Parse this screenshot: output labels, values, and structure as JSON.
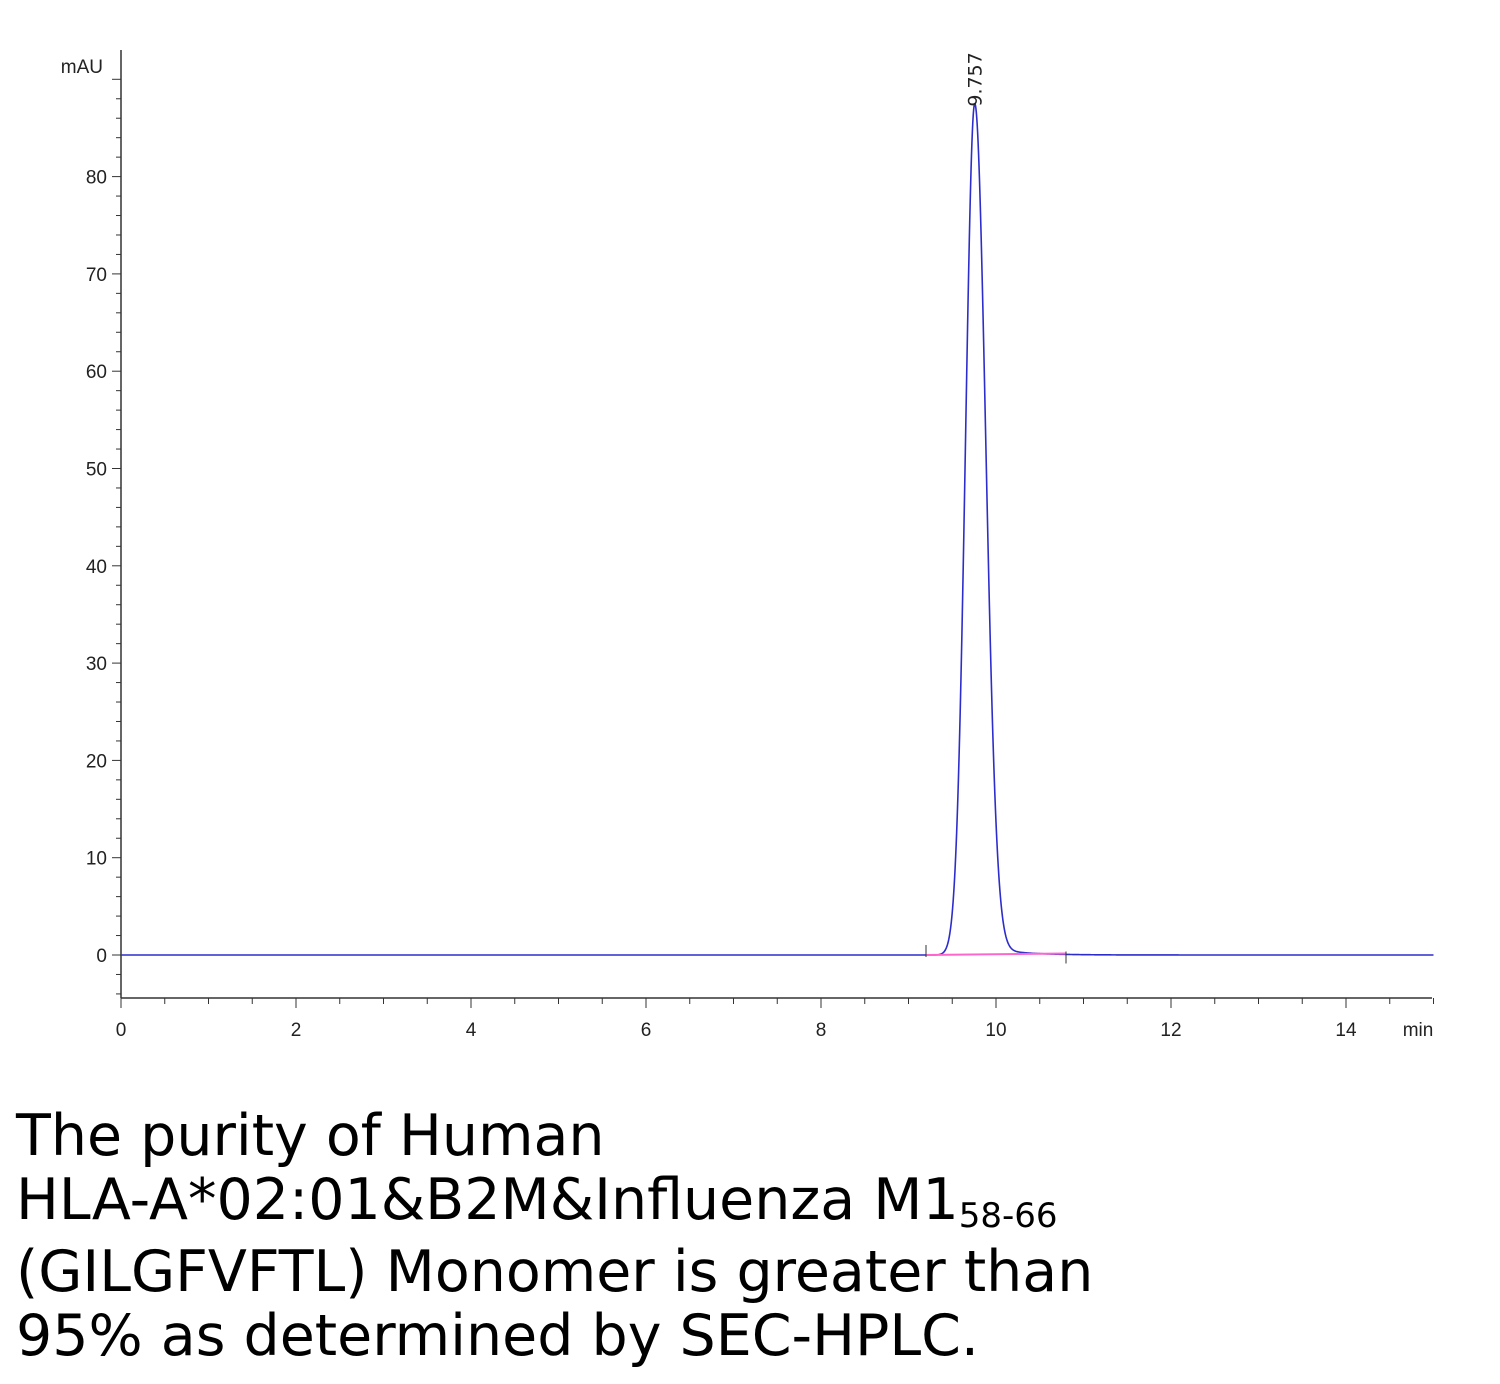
{
  "chart_data": {
    "type": "line",
    "xlabel": "min",
    "ylabel": "mAU",
    "xlim": [
      0,
      15
    ],
    "ylim": [
      -4.5,
      92
    ],
    "x_ticks": [
      0,
      2,
      4,
      6,
      8,
      10,
      12,
      14
    ],
    "y_ticks": [
      0,
      10,
      20,
      30,
      40,
      50,
      60,
      70,
      80
    ],
    "grid": false,
    "series": [
      {
        "color": "#2d2dcc",
        "peak": {
          "retention_time": 9.757,
          "height": 87.5,
          "sigma_left": 0.105,
          "sigma_right": 0.125
        },
        "baseline": 0
      }
    ],
    "integration_baseline": {
      "x": [
        9.2,
        10.8
      ],
      "y": [
        0,
        0.15
      ],
      "color": "#ff66cc"
    },
    "annotations": [
      {
        "text": "9.757",
        "x": 9.757,
        "y": 87.5
      }
    ]
  },
  "caption": {
    "line1": "The purity of Human",
    "line2_main": "HLA-A*02:01&B2M&Influenza M1",
    "line2_sub": "58-66",
    "line3": "(GILGFVFTL) Monomer is greater than",
    "line4": "95% as determined by SEC-HPLC."
  }
}
